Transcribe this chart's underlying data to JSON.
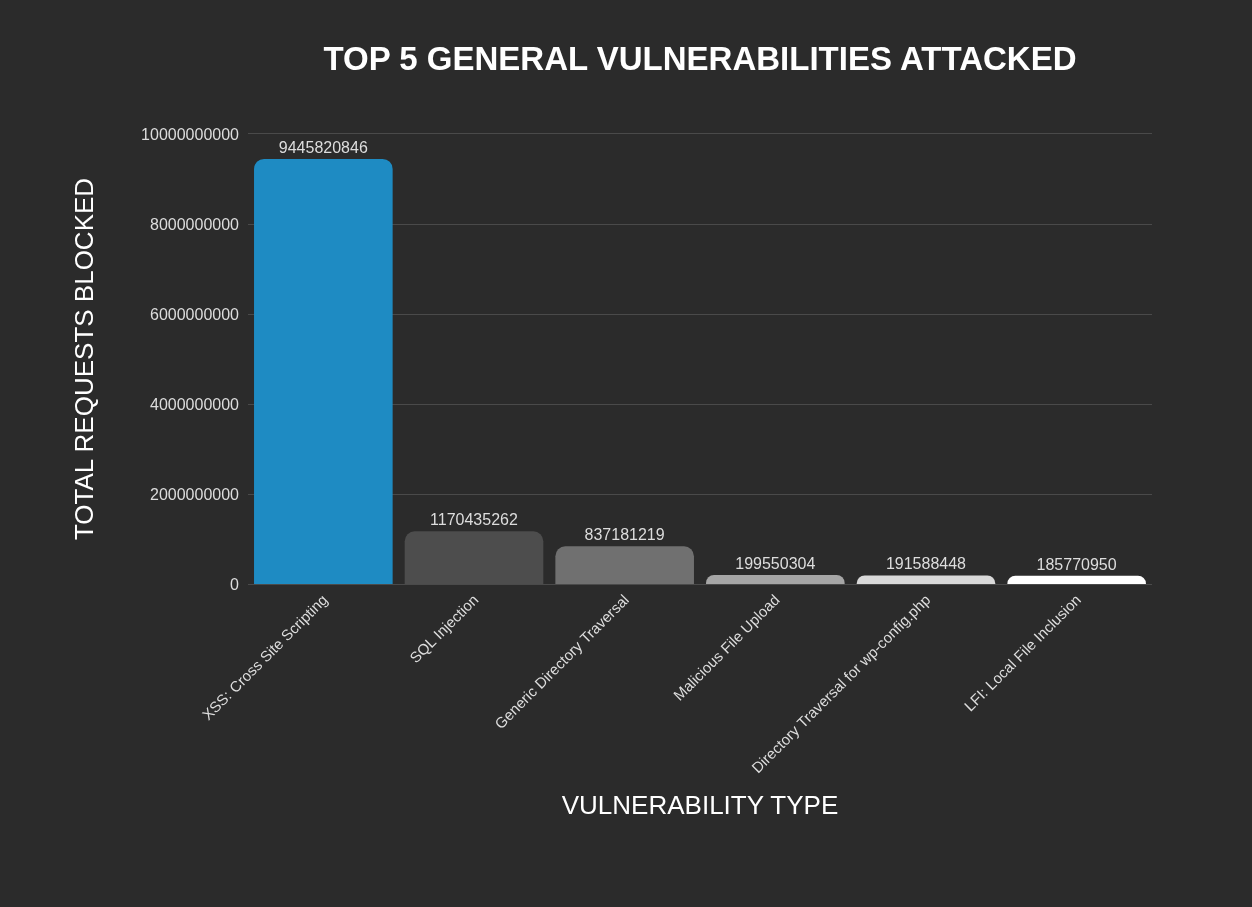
{
  "chart_data": {
    "type": "bar",
    "title": "TOP 5 GENERAL VULNERABILITIES ATTACKED",
    "xlabel": "VULNERABILITY TYPE",
    "ylabel": "TOTAL REQUESTS BLOCKED",
    "categories": [
      "XSS: Cross Site Scripting",
      "SQL Injection",
      "Generic Directory Traversal",
      "Malicious File Upload",
      "Directory Traversal for wp-config.php",
      "LFI: Local File Inclusion"
    ],
    "values": [
      9445820846,
      1170435262,
      837181219,
      199550304,
      191588448,
      185770950
    ],
    "colors": [
      "#1e8bc3",
      "#4d4d4d",
      "#707070",
      "#a6a6a6",
      "#d9d9d9",
      "#ffffff"
    ],
    "ylim": [
      0,
      10000000000
    ],
    "yticks": [
      0,
      2000000000,
      4000000000,
      6000000000,
      8000000000,
      10000000000
    ],
    "grid": "y",
    "data_labels": true
  }
}
